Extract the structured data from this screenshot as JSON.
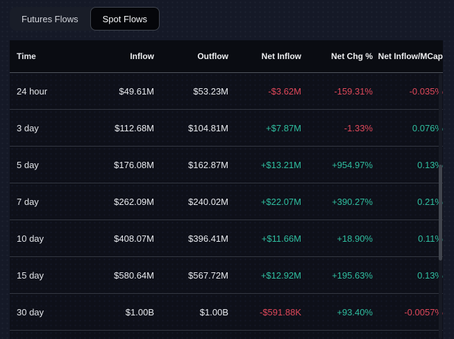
{
  "colors": {
    "positive": "#2fbfa0",
    "negative": "#e0485a"
  },
  "tabs": {
    "futures": {
      "label": "Futures Flows"
    },
    "spot": {
      "label": "Spot Flows"
    }
  },
  "table": {
    "columns": {
      "time": "Time",
      "inflow": "Inflow",
      "outflow": "Outflow",
      "net_inflow": "Net Inflow",
      "net_chg": "Net Chg %",
      "net_mcap": "Net Inflow/MCap"
    },
    "rows": [
      {
        "time": "24 hour",
        "inflow": "$49.61M",
        "outflow": "$53.23M",
        "net_inflow": "-$3.62M",
        "net_chg": "-159.31%",
        "net_mcap": "-0.035%",
        "cls": {
          "net_inflow": "neg",
          "net_chg": "neg",
          "net_mcap": "neg"
        }
      },
      {
        "time": "3 day",
        "inflow": "$112.68M",
        "outflow": "$104.81M",
        "net_inflow": "+$7.87M",
        "net_chg": "-1.33%",
        "net_mcap": "0.076%",
        "cls": {
          "net_inflow": "pos",
          "net_chg": "neg",
          "net_mcap": "pos"
        }
      },
      {
        "time": "5 day",
        "inflow": "$176.08M",
        "outflow": "$162.87M",
        "net_inflow": "+$13.21M",
        "net_chg": "+954.97%",
        "net_mcap": "0.13%",
        "cls": {
          "net_inflow": "pos",
          "net_chg": "pos",
          "net_mcap": "pos"
        }
      },
      {
        "time": "7 day",
        "inflow": "$262.09M",
        "outflow": "$240.02M",
        "net_inflow": "+$22.07M",
        "net_chg": "+390.27%",
        "net_mcap": "0.21%",
        "cls": {
          "net_inflow": "pos",
          "net_chg": "pos",
          "net_mcap": "pos"
        }
      },
      {
        "time": "10 day",
        "inflow": "$408.07M",
        "outflow": "$396.41M",
        "net_inflow": "+$11.66M",
        "net_chg": "+18.90%",
        "net_mcap": "0.11%",
        "cls": {
          "net_inflow": "pos",
          "net_chg": "pos",
          "net_mcap": "pos"
        }
      },
      {
        "time": "15 day",
        "inflow": "$580.64M",
        "outflow": "$567.72M",
        "net_inflow": "+$12.92M",
        "net_chg": "+195.63%",
        "net_mcap": "0.13%",
        "cls": {
          "net_inflow": "pos",
          "net_chg": "pos",
          "net_mcap": "pos"
        }
      },
      {
        "time": "30 day",
        "inflow": "$1.00B",
        "outflow": "$1.00B",
        "net_inflow": "-$591.88K",
        "net_chg": "+93.40%",
        "net_mcap": "-0.0057%",
        "cls": {
          "net_inflow": "neg",
          "net_chg": "pos",
          "net_mcap": "neg"
        }
      }
    ]
  }
}
